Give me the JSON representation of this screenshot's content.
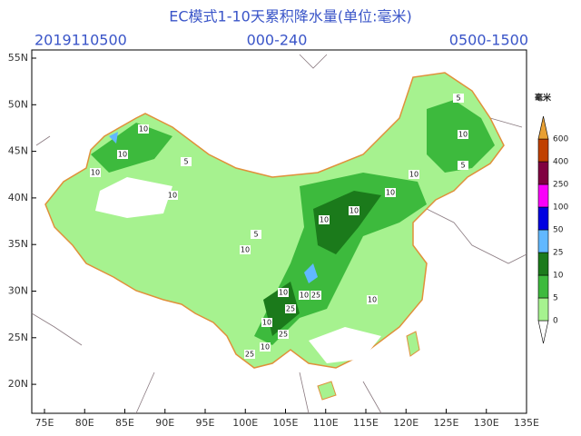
{
  "header": {
    "title": "EC模式1-10天累积降水量(单位:毫米)",
    "init_time": "2019110500",
    "forecast_range": "000-240",
    "period": "0500-1500"
  },
  "map": {
    "lon_ticks": [
      "75E",
      "80E",
      "85E",
      "90E",
      "95E",
      "100E",
      "105E",
      "110E",
      "115E",
      "120E",
      "125E",
      "130E",
      "135E"
    ],
    "lat_ticks": [
      "55N",
      "50N",
      "45N",
      "40N",
      "35N",
      "30N",
      "25N",
      "20N"
    ],
    "contour_labels": [
      "10",
      "10",
      "10",
      "5",
      "10",
      "5",
      "10",
      "10",
      "10",
      "10",
      "10",
      "10",
      "25",
      "10",
      "25",
      "10",
      "25",
      "10",
      "10",
      "25",
      "5",
      "5",
      "10"
    ]
  },
  "legend": {
    "unit": "毫米",
    "levels": [
      0,
      5,
      10,
      25,
      50,
      100,
      250,
      400,
      600
    ],
    "colors": [
      "#ffffff",
      "#a6f28f",
      "#3dba3d",
      "#1b7a1b",
      "#61b8ff",
      "#0000e1",
      "#fa00fa",
      "#800040",
      "#c04000",
      "#e8a033"
    ]
  }
}
